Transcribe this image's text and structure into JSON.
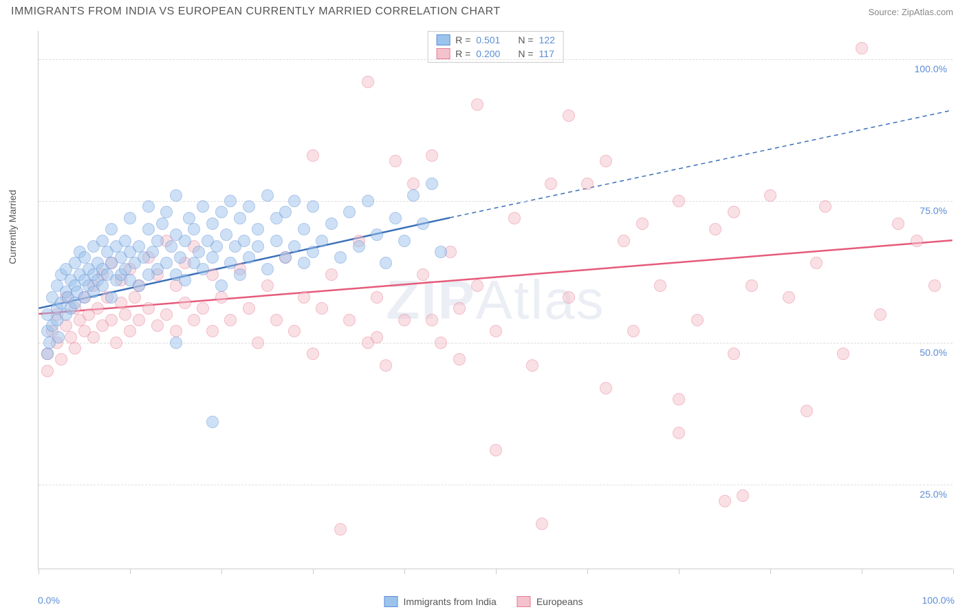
{
  "title": "IMMIGRANTS FROM INDIA VS EUROPEAN CURRENTLY MARRIED CORRELATION CHART",
  "source": "Source: ZipAtlas.com",
  "watermark": "ZIPAtlas",
  "y_axis_title": "Currently Married",
  "chart": {
    "type": "scatter",
    "xlim": [
      0,
      100
    ],
    "ylim": [
      10,
      105
    ],
    "x_ticks": [
      0,
      10,
      20,
      30,
      40,
      50,
      60,
      70,
      80,
      90,
      100
    ],
    "y_gridlines": [
      25,
      50,
      75,
      100
    ],
    "y_labels": [
      "25.0%",
      "50.0%",
      "75.0%",
      "100.0%"
    ],
    "x_min_label": "0.0%",
    "x_max_label": "100.0%",
    "background_color": "#ffffff",
    "grid_color": "#dddddd",
    "axis_label_color": "#5b8dd6",
    "point_radius": 9,
    "point_opacity": 0.5
  },
  "series": [
    {
      "name": "Immigrants from India",
      "fill_color": "#9cc3ec",
      "stroke_color": "#5b8dd6",
      "line_color": "#3a6fb7",
      "r": "0.501",
      "n": "122",
      "trend": {
        "x1": 0,
        "y1": 56,
        "x2": 45,
        "y2": 72,
        "extend_x": 100,
        "extend_y": 91,
        "dash_extend": true
      },
      "points": [
        [
          1,
          55
        ],
        [
          1,
          52
        ],
        [
          1,
          48
        ],
        [
          1.2,
          50
        ],
        [
          1.5,
          53
        ],
        [
          1.5,
          58
        ],
        [
          2,
          56
        ],
        [
          2,
          60
        ],
        [
          2,
          54
        ],
        [
          2.2,
          51
        ],
        [
          2.5,
          57
        ],
        [
          2.5,
          62
        ],
        [
          3,
          55
        ],
        [
          3,
          59
        ],
        [
          3,
          63
        ],
        [
          3.2,
          58
        ],
        [
          3.5,
          56
        ],
        [
          3.5,
          61
        ],
        [
          4,
          57
        ],
        [
          4,
          60
        ],
        [
          4,
          64
        ],
        [
          4.2,
          59
        ],
        [
          4.5,
          62
        ],
        [
          4.5,
          66
        ],
        [
          5,
          58
        ],
        [
          5,
          61
        ],
        [
          5,
          65
        ],
        [
          5.5,
          60
        ],
        [
          5.5,
          63
        ],
        [
          6,
          59
        ],
        [
          6,
          62
        ],
        [
          6,
          67
        ],
        [
          6.5,
          61
        ],
        [
          6.5,
          64
        ],
        [
          7,
          60
        ],
        [
          7,
          63
        ],
        [
          7,
          68
        ],
        [
          7.5,
          62
        ],
        [
          7.5,
          66
        ],
        [
          8,
          58
        ],
        [
          8,
          64
        ],
        [
          8,
          70
        ],
        [
          8.5,
          61
        ],
        [
          8.5,
          67
        ],
        [
          9,
          62
        ],
        [
          9,
          65
        ],
        [
          9.5,
          63
        ],
        [
          9.5,
          68
        ],
        [
          10,
          61
        ],
        [
          10,
          66
        ],
        [
          10,
          72
        ],
        [
          10.5,
          64
        ],
        [
          11,
          60
        ],
        [
          11,
          67
        ],
        [
          11.5,
          65
        ],
        [
          12,
          62
        ],
        [
          12,
          70
        ],
        [
          12,
          74
        ],
        [
          12.5,
          66
        ],
        [
          13,
          63
        ],
        [
          13,
          68
        ],
        [
          13.5,
          71
        ],
        [
          14,
          64
        ],
        [
          14,
          73
        ],
        [
          14.5,
          67
        ],
        [
          15,
          62
        ],
        [
          15,
          69
        ],
        [
          15,
          76
        ],
        [
          15.5,
          65
        ],
        [
          16,
          61
        ],
        [
          16,
          68
        ],
        [
          16.5,
          72
        ],
        [
          17,
          64
        ],
        [
          17,
          70
        ],
        [
          17.5,
          66
        ],
        [
          18,
          63
        ],
        [
          18,
          74
        ],
        [
          18.5,
          68
        ],
        [
          19,
          65
        ],
        [
          19,
          71
        ],
        [
          19.5,
          67
        ],
        [
          20,
          60
        ],
        [
          20,
          73
        ],
        [
          20.5,
          69
        ],
        [
          21,
          64
        ],
        [
          21,
          75
        ],
        [
          21.5,
          67
        ],
        [
          22,
          62
        ],
        [
          22,
          72
        ],
        [
          22.5,
          68
        ],
        [
          23,
          65
        ],
        [
          23,
          74
        ],
        [
          24,
          67
        ],
        [
          24,
          70
        ],
        [
          25,
          63
        ],
        [
          25,
          76
        ],
        [
          26,
          68
        ],
        [
          26,
          72
        ],
        [
          27,
          65
        ],
        [
          27,
          73
        ],
        [
          28,
          67
        ],
        [
          28,
          75
        ],
        [
          29,
          64
        ],
        [
          29,
          70
        ],
        [
          30,
          66
        ],
        [
          30,
          74
        ],
        [
          31,
          68
        ],
        [
          32,
          71
        ],
        [
          33,
          65
        ],
        [
          34,
          73
        ],
        [
          35,
          67
        ],
        [
          36,
          75
        ],
        [
          37,
          69
        ],
        [
          38,
          64
        ],
        [
          39,
          72
        ],
        [
          40,
          68
        ],
        [
          41,
          76
        ],
        [
          42,
          71
        ],
        [
          43,
          78
        ],
        [
          44,
          66
        ],
        [
          19,
          36
        ],
        [
          15,
          50
        ]
      ]
    },
    {
      "name": "Europeans",
      "fill_color": "#f4c2cc",
      "stroke_color": "#e87a94",
      "line_color": "#e65a7a",
      "r": "0.200",
      "n": "117",
      "trend": {
        "x1": 0,
        "y1": 55,
        "x2": 100,
        "y2": 68,
        "extend_x": 100,
        "extend_y": 68,
        "dash_extend": false
      },
      "points": [
        [
          1,
          48
        ],
        [
          1,
          45
        ],
        [
          1.5,
          52
        ],
        [
          2,
          50
        ],
        [
          2,
          55
        ],
        [
          2.5,
          47
        ],
        [
          3,
          53
        ],
        [
          3,
          58
        ],
        [
          3.5,
          51
        ],
        [
          4,
          56
        ],
        [
          4,
          49
        ],
        [
          4.5,
          54
        ],
        [
          5,
          52
        ],
        [
          5,
          58
        ],
        [
          5.5,
          55
        ],
        [
          6,
          51
        ],
        [
          6,
          60
        ],
        [
          6.5,
          56
        ],
        [
          7,
          53
        ],
        [
          7,
          62
        ],
        [
          7.5,
          58
        ],
        [
          8,
          54
        ],
        [
          8,
          64
        ],
        [
          8.5,
          50
        ],
        [
          9,
          57
        ],
        [
          9,
          61
        ],
        [
          9.5,
          55
        ],
        [
          10,
          52
        ],
        [
          10,
          63
        ],
        [
          10.5,
          58
        ],
        [
          11,
          54
        ],
        [
          11,
          60
        ],
        [
          12,
          56
        ],
        [
          12,
          65
        ],
        [
          13,
          53
        ],
        [
          13,
          62
        ],
        [
          14,
          55
        ],
        [
          14,
          68
        ],
        [
          15,
          52
        ],
        [
          15,
          60
        ],
        [
          16,
          57
        ],
        [
          16,
          64
        ],
        [
          17,
          54
        ],
        [
          17,
          67
        ],
        [
          18,
          56
        ],
        [
          19,
          52
        ],
        [
          19,
          62
        ],
        [
          20,
          58
        ],
        [
          21,
          54
        ],
        [
          22,
          63
        ],
        [
          23,
          56
        ],
        [
          24,
          50
        ],
        [
          25,
          60
        ],
        [
          26,
          54
        ],
        [
          27,
          65
        ],
        [
          28,
          52
        ],
        [
          29,
          58
        ],
        [
          30,
          48
        ],
        [
          30,
          83
        ],
        [
          31,
          56
        ],
        [
          32,
          62
        ],
        [
          33,
          17
        ],
        [
          34,
          54
        ],
        [
          35,
          68
        ],
        [
          36,
          96
        ],
        [
          36,
          50
        ],
        [
          37,
          58
        ],
        [
          38,
          46
        ],
        [
          39,
          82
        ],
        [
          40,
          54
        ],
        [
          41,
          78
        ],
        [
          42,
          62
        ],
        [
          43,
          83
        ],
        [
          44,
          50
        ],
        [
          45,
          66
        ],
        [
          46,
          56
        ],
        [
          48,
          60
        ],
        [
          50,
          52
        ],
        [
          50,
          31
        ],
        [
          52,
          72
        ],
        [
          54,
          46
        ],
        [
          55,
          18
        ],
        [
          56,
          78
        ],
        [
          58,
          58
        ],
        [
          58,
          90
        ],
        [
          60,
          78
        ],
        [
          62,
          82
        ],
        [
          62,
          42
        ],
        [
          64,
          68
        ],
        [
          65,
          52
        ],
        [
          66,
          71
        ],
        [
          68,
          60
        ],
        [
          70,
          40
        ],
        [
          70,
          75
        ],
        [
          72,
          54
        ],
        [
          74,
          70
        ],
        [
          75,
          22
        ],
        [
          76,
          48
        ],
        [
          76,
          73
        ],
        [
          77,
          23
        ],
        [
          78,
          60
        ],
        [
          80,
          76
        ],
        [
          82,
          58
        ],
        [
          84,
          38
        ],
        [
          85,
          64
        ],
        [
          86,
          74
        ],
        [
          88,
          48
        ],
        [
          90,
          102
        ],
        [
          92,
          55
        ],
        [
          94,
          71
        ],
        [
          96,
          68
        ],
        [
          98,
          60
        ],
        [
          70,
          34
        ],
        [
          46,
          47
        ],
        [
          48,
          92
        ],
        [
          43,
          54
        ],
        [
          37,
          51
        ]
      ]
    }
  ],
  "legend_bottom": [
    {
      "label": "Immigrants from India",
      "fill": "#9cc3ec",
      "stroke": "#5b8dd6"
    },
    {
      "label": "Europeans",
      "fill": "#f4c2cc",
      "stroke": "#e87a94"
    }
  ]
}
